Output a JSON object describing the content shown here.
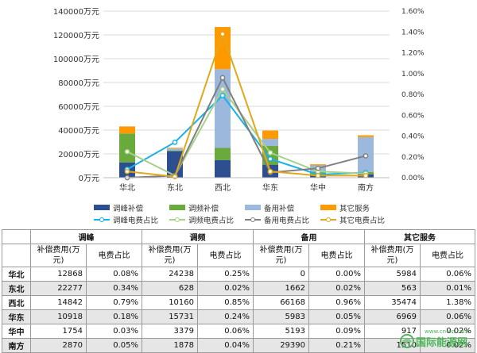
{
  "chart_data": {
    "type": "bar",
    "categories": [
      "华北",
      "东北",
      "西北",
      "华东",
      "华中",
      "南方"
    ],
    "y_left_ticks": [
      "0万元",
      "20000万元",
      "40000万元",
      "60000万元",
      "80000万元",
      "100000万元",
      "120000万元",
      "140000万元"
    ],
    "y_left_lim": [
      0,
      140000
    ],
    "y_right_ticks": [
      "0.00%",
      "0.20%",
      "0.40%",
      "0.60%",
      "0.80%",
      "1.00%",
      "1.20%",
      "1.40%",
      "1.60%"
    ],
    "y_right_lim": [
      0,
      1.6
    ],
    "stacked_series": [
      {
        "name": "调峰补偿",
        "color": "#2e4f8f",
        "values": [
          12868,
          22277,
          14842,
          10918,
          1754,
          2870
        ]
      },
      {
        "name": "调频补偿",
        "color": "#6aaa3c",
        "values": [
          24238,
          628,
          10160,
          15731,
          3379,
          1878
        ]
      },
      {
        "name": "备用补偿",
        "color": "#9cb8dc",
        "values": [
          0,
          1662,
          66168,
          5983,
          5193,
          29390
        ]
      },
      {
        "name": "其它服务",
        "color": "#ff9900",
        "values": [
          5984,
          563,
          35474,
          6969,
          917,
          1510
        ]
      }
    ],
    "line_series": [
      {
        "name": "调峰电费占比",
        "color": "#1ab0e8",
        "values": [
          0.08,
          0.34,
          0.79,
          0.18,
          0.03,
          0.05
        ]
      },
      {
        "name": "调频电费占比",
        "color": "#a6d18a",
        "values": [
          0.25,
          0.02,
          0.85,
          0.24,
          0.06,
          0.04
        ]
      },
      {
        "name": "备用电费占比",
        "color": "#7f7f7f",
        "values": [
          0.0,
          0.02,
          0.96,
          0.05,
          0.09,
          0.21
        ]
      },
      {
        "name": "其它电费占比",
        "color": "#e0a81c",
        "values": [
          0.06,
          0.01,
          1.38,
          0.06,
          0.02,
          0.02
        ]
      }
    ]
  },
  "table": {
    "group_headers": [
      "调峰",
      "调频",
      "备用",
      "其它服务"
    ],
    "sub_headers": [
      "补偿费用(万元)",
      "电费占比"
    ],
    "rows": [
      {
        "region": "华北",
        "cells": [
          "12868",
          "0.08%",
          "24238",
          "0.25%",
          "0",
          "0.00%",
          "5984",
          "0.06%"
        ]
      },
      {
        "region": "东北",
        "cells": [
          "22277",
          "0.34%",
          "628",
          "0.02%",
          "1662",
          "0.02%",
          "563",
          "0.01%"
        ]
      },
      {
        "region": "西北",
        "cells": [
          "14842",
          "0.79%",
          "10160",
          "0.85%",
          "66168",
          "0.96%",
          "35474",
          "1.38%"
        ]
      },
      {
        "region": "华东",
        "cells": [
          "10918",
          "0.18%",
          "15731",
          "0.24%",
          "5983",
          "0.05%",
          "6969",
          "0.06%"
        ]
      },
      {
        "region": "华中",
        "cells": [
          "1754",
          "0.03%",
          "3379",
          "0.06%",
          "5193",
          "0.09%",
          "917",
          "0.02%"
        ]
      },
      {
        "region": "南方",
        "cells": [
          "2870",
          "0.05%",
          "1878",
          "0.04%",
          "29390",
          "0.21%",
          "1510",
          "0.02%"
        ]
      }
    ]
  },
  "watermark": {
    "url": "www.cn-en.com",
    "name": "国际能源网"
  }
}
